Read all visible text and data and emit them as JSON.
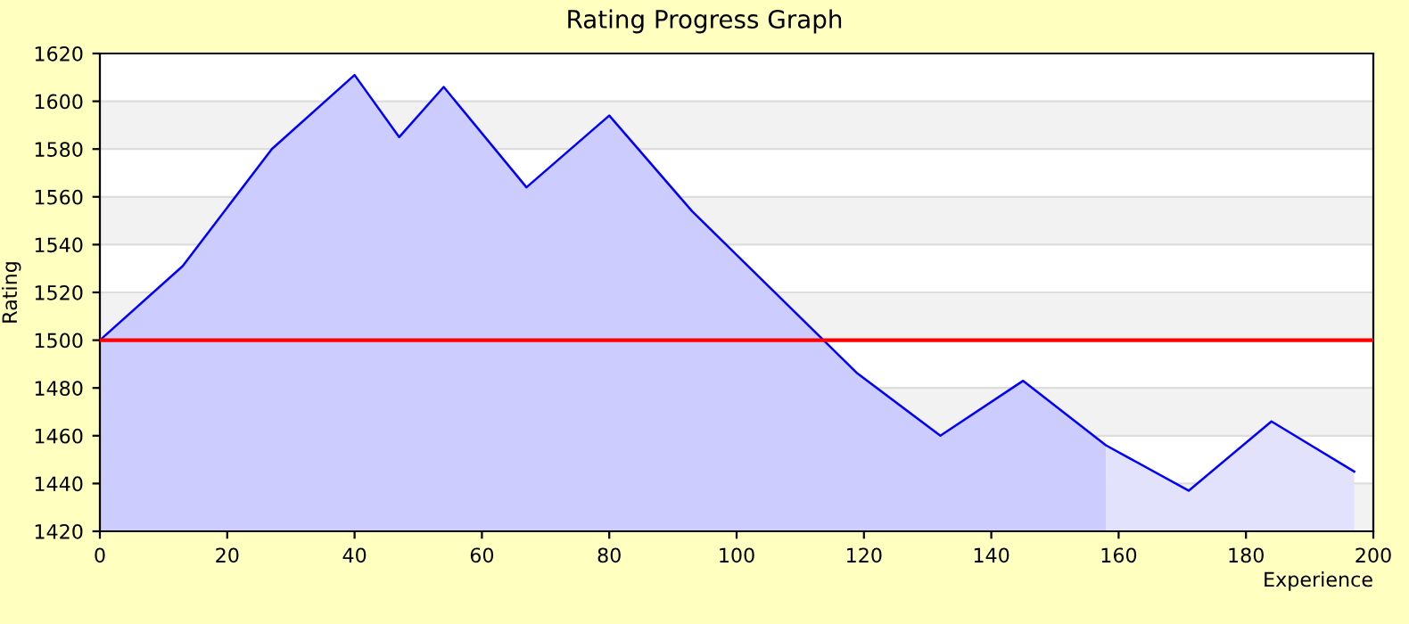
{
  "chart_data": {
    "type": "area",
    "title": "Rating Progress Graph",
    "xlabel": "Experience",
    "ylabel": "Rating",
    "xlim": [
      0,
      200
    ],
    "ylim": [
      1420,
      1620
    ],
    "xticks": [
      0,
      20,
      40,
      60,
      80,
      100,
      120,
      140,
      160,
      180,
      200
    ],
    "yticks": [
      1420,
      1440,
      1460,
      1480,
      1500,
      1520,
      1540,
      1560,
      1580,
      1600,
      1620
    ],
    "grid": "y",
    "series": [
      {
        "color": "#ccccff",
        "x": [
          0,
          13,
          27,
          40,
          47,
          54,
          67,
          80,
          93,
          119,
          132,
          145,
          158
        ],
        "values": [
          1500,
          1531,
          1580,
          1611,
          1585,
          1606,
          1564,
          1594,
          1554,
          1486,
          1460,
          1483,
          1456
        ]
      },
      {
        "color": "#e2e2fc",
        "x": [
          158,
          171,
          184,
          197
        ],
        "values": [
          1456,
          1437,
          1466,
          1445
        ]
      },
      {
        "color": "#0000ff",
        "type": "line",
        "x": [
          0,
          13,
          27,
          40,
          47,
          54,
          67,
          80,
          93,
          119,
          132,
          145,
          158,
          171,
          184,
          197
        ],
        "values": [
          1500,
          1531,
          1580,
          1611,
          1585,
          1606,
          1564,
          1594,
          1554,
          1486,
          1460,
          1483,
          1456,
          1437,
          1466,
          1445
        ]
      }
    ],
    "ref_lines": [
      {
        "axis": "y",
        "value": 1500,
        "color": "#ff0000"
      }
    ]
  }
}
